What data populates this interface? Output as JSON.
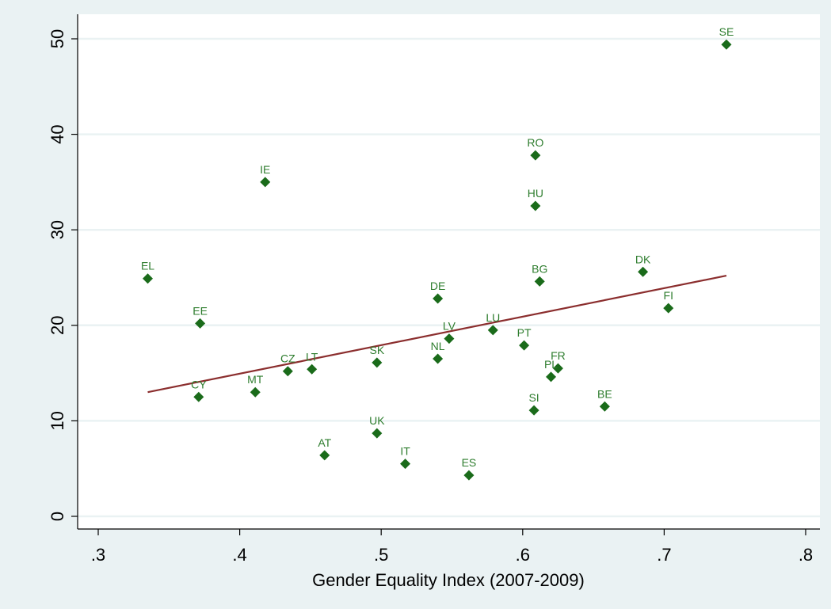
{
  "chart_data": {
    "type": "scatter",
    "title": "",
    "xlabel": "Gender Equality Index (2007-2009)",
    "ylabel": "",
    "xlim": [
      0.3,
      0.8
    ],
    "ylim": [
      0,
      50
    ],
    "xticks": [
      0.3,
      0.4,
      0.5,
      0.6,
      0.7,
      0.8
    ],
    "xtick_labels": [
      ".3",
      ".4",
      ".5",
      ".6",
      ".7",
      ".8"
    ],
    "yticks": [
      0,
      10,
      20,
      30,
      40,
      50
    ],
    "ytick_labels": [
      "0",
      "10",
      "20",
      "30",
      "40",
      "50"
    ],
    "grid": "horizontal",
    "legend": "none",
    "points": [
      {
        "label": "SE",
        "x": 0.744,
        "y": 49.4
      },
      {
        "label": "RO",
        "x": 0.609,
        "y": 37.8
      },
      {
        "label": "IE",
        "x": 0.418,
        "y": 35.0
      },
      {
        "label": "HU",
        "x": 0.609,
        "y": 32.5
      },
      {
        "label": "EL",
        "x": 0.335,
        "y": 24.9
      },
      {
        "label": "DK",
        "x": 0.685,
        "y": 25.6
      },
      {
        "label": "BG",
        "x": 0.612,
        "y": 24.6
      },
      {
        "label": "DE",
        "x": 0.54,
        "y": 22.8
      },
      {
        "label": "FI",
        "x": 0.703,
        "y": 21.8
      },
      {
        "label": "EE",
        "x": 0.372,
        "y": 20.2
      },
      {
        "label": "LU",
        "x": 0.579,
        "y": 19.5
      },
      {
        "label": "LV",
        "x": 0.548,
        "y": 18.6
      },
      {
        "label": "PT",
        "x": 0.601,
        "y": 17.9
      },
      {
        "label": "NL",
        "x": 0.54,
        "y": 16.5
      },
      {
        "label": "SK",
        "x": 0.497,
        "y": 16.1
      },
      {
        "label": "FR",
        "x": 0.625,
        "y": 15.5
      },
      {
        "label": "LT",
        "x": 0.451,
        "y": 15.4
      },
      {
        "label": "CZ",
        "x": 0.434,
        "y": 15.2
      },
      {
        "label": "PL",
        "x": 0.62,
        "y": 14.6
      },
      {
        "label": "MT",
        "x": 0.411,
        "y": 13.0
      },
      {
        "label": "CY",
        "x": 0.371,
        "y": 12.5
      },
      {
        "label": "BE",
        "x": 0.658,
        "y": 11.5
      },
      {
        "label": "SI",
        "x": 0.608,
        "y": 11.1
      },
      {
        "label": "UK",
        "x": 0.497,
        "y": 8.7
      },
      {
        "label": "AT",
        "x": 0.46,
        "y": 6.4
      },
      {
        "label": "IT",
        "x": 0.517,
        "y": 5.5
      },
      {
        "label": "ES",
        "x": 0.562,
        "y": 4.3
      }
    ],
    "fit_line": {
      "x": [
        0.335,
        0.744
      ],
      "y": [
        13.0,
        25.2
      ]
    }
  },
  "colors": {
    "background": "#eaf2f3",
    "plot_background": "#ffffff",
    "grid": "#eaf2f3",
    "marker": "#1a6b1a",
    "label": "#2e7d2e",
    "fit_line": "#8b2e2e",
    "axis": "#000000"
  }
}
